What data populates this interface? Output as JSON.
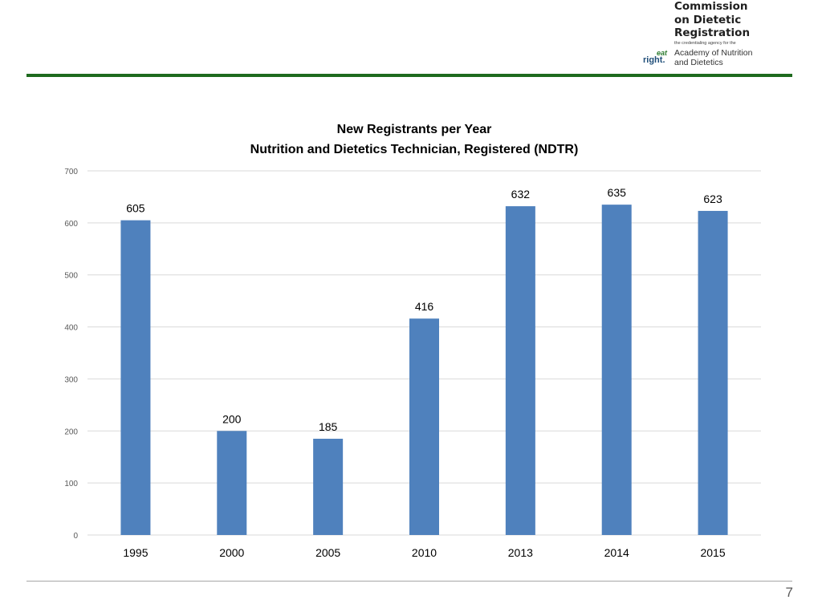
{
  "logo": {
    "org_line1": "Commission",
    "org_line2": "on Dietetic",
    "org_line3": "Registration",
    "tagline": "the credentialing agency for the",
    "academy_line1": "Academy of Nutrition",
    "academy_line2": "and Dietetics",
    "eat": "eat",
    "right": "right."
  },
  "page_number": "7",
  "colors": {
    "bar": "#4f81bd",
    "rule_green": "#1e6b1e",
    "grid": "#d9d9d9",
    "text": "#000000",
    "axis_text": "#595959"
  },
  "chart_data": {
    "type": "bar",
    "title": "New Registrants per Year",
    "subtitle": "Nutrition and Dietetics Technician, Registered (NDTR)",
    "categories": [
      "1995",
      "2000",
      "2005",
      "2010",
      "2013",
      "2014",
      "2015"
    ],
    "values": [
      605,
      200,
      185,
      416,
      632,
      635,
      623
    ],
    "ylim": [
      0,
      700
    ],
    "yticks": [
      0,
      100,
      200,
      300,
      400,
      500,
      600,
      700
    ],
    "xlabel": "",
    "ylabel": "",
    "grid": true,
    "legend": "none"
  }
}
